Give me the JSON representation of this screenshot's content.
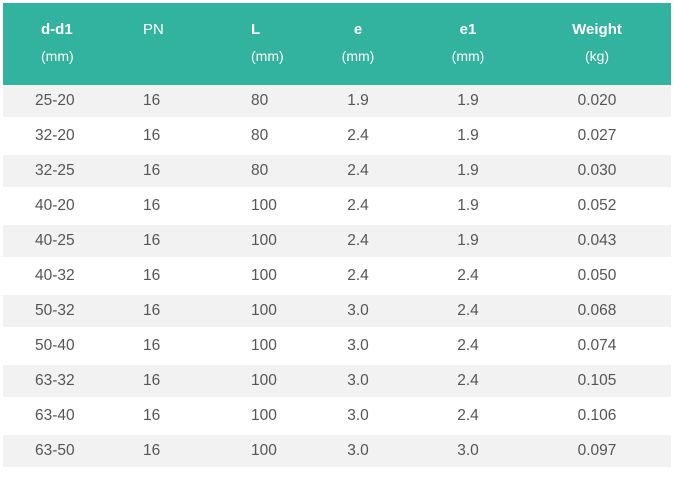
{
  "table": {
    "headers": [
      {
        "title": "d-d1",
        "unit": "(mm)"
      },
      {
        "title": "PN",
        "unit": ""
      },
      {
        "title": "L",
        "unit": "(mm)"
      },
      {
        "title": "e",
        "unit": "(mm)"
      },
      {
        "title": "e1",
        "unit": "(mm)"
      },
      {
        "title": "Weight",
        "unit": "(kg)"
      }
    ],
    "rows": [
      [
        "25-20",
        "16",
        "80",
        "1.9",
        "1.9",
        "0.020"
      ],
      [
        "32-20",
        "16",
        "80",
        "2.4",
        "1.9",
        "0.027"
      ],
      [
        "32-25",
        "16",
        "80",
        "2.4",
        "1.9",
        "0.030"
      ],
      [
        "40-20",
        "16",
        "100",
        "2.4",
        "1.9",
        "0.052"
      ],
      [
        "40-25",
        "16",
        "100",
        "2.4",
        "1.9",
        "0.043"
      ],
      [
        "40-32",
        "16",
        "100",
        "2.4",
        "2.4",
        "0.050"
      ],
      [
        "50-32",
        "16",
        "100",
        "3.0",
        "2.4",
        "0.068"
      ],
      [
        "50-40",
        "16",
        "100",
        "3.0",
        "2.4",
        "0.074"
      ],
      [
        "63-32",
        "16",
        "100",
        "3.0",
        "2.4",
        "0.105"
      ],
      [
        "63-40",
        "16",
        "100",
        "3.0",
        "2.4",
        "0.106"
      ],
      [
        "63-50",
        "16",
        "100",
        "3.0",
        "3.0",
        "0.097"
      ]
    ]
  },
  "colors": {
    "header_background": "#31b39f",
    "header_text": "#ffffff",
    "row_striped": "#f2f2f2",
    "row_plain": "#ffffff",
    "cell_text": "#555555"
  }
}
